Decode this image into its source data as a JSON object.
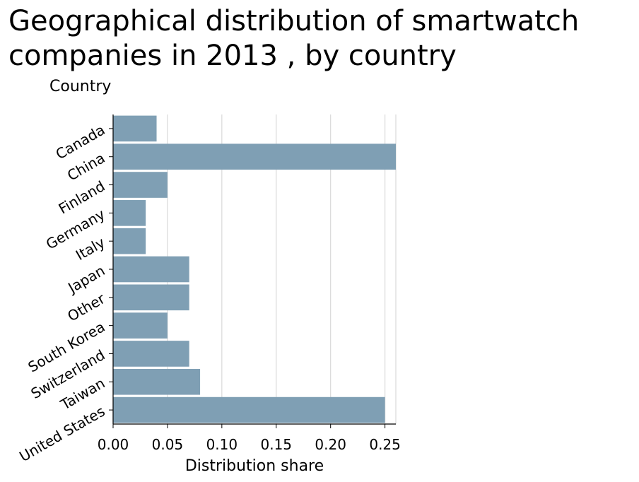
{
  "chart_data": {
    "type": "bar",
    "orientation": "horizontal",
    "title": "Geographical distribution of smartwatch companies in 2013 , by country",
    "ylabel": "Country",
    "xlabel": "Distribution share",
    "categories": [
      "Canada",
      "China",
      "Finland",
      "Germany",
      "Italy",
      "Japan",
      "Other",
      "South Korea",
      "Switzerland",
      "Taiwan",
      "United States"
    ],
    "values": [
      0.04,
      0.26,
      0.05,
      0.03,
      0.03,
      0.07,
      0.07,
      0.05,
      0.07,
      0.08,
      0.25
    ],
    "xticks": [
      "0.00",
      "0.05",
      "0.10",
      "0.15",
      "0.20",
      "0.25"
    ],
    "xlim": [
      0,
      0.26
    ],
    "grid": true,
    "bar_color": "#7f9fb4",
    "grid_color": "#d9d9d9"
  }
}
